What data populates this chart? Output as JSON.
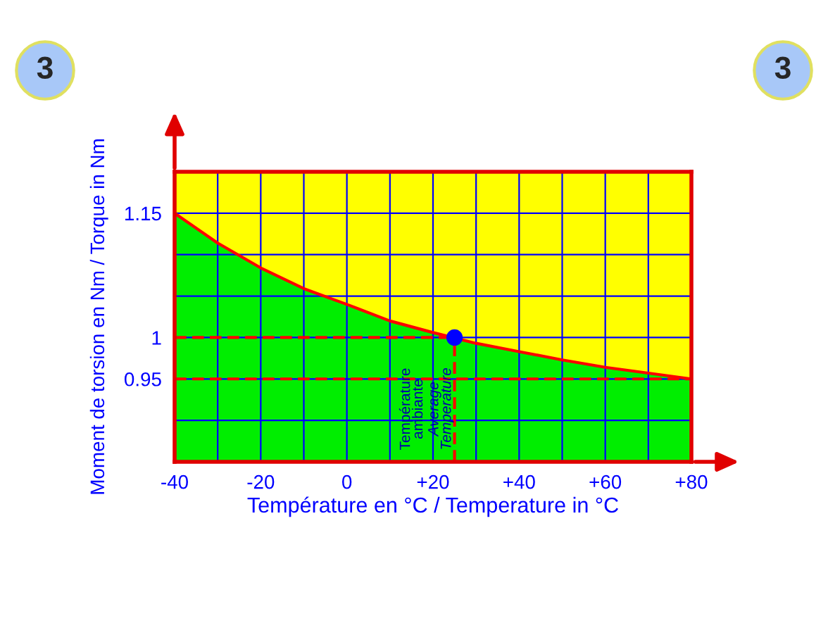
{
  "chart_data": {
    "type": "area",
    "xlabel": "Température en °C / Temperature in °C",
    "ylabel": "Moment de torsion en Nm / Torque in Nm",
    "x": [
      -40,
      -30,
      -20,
      -10,
      0,
      10,
      20,
      30,
      40,
      50,
      60,
      70,
      80
    ],
    "series": [
      {
        "color": "#00ee00",
        "values": [
          1.15,
          1.114,
          1.084,
          1.059,
          1.04,
          1.02,
          1.006,
          0.993,
          0.983,
          0.973,
          0.964,
          0.957,
          0.95
        ]
      },
      {
        "type": "line",
        "color": "#ff0000",
        "values": [
          1.15,
          1.114,
          1.084,
          1.059,
          1.04,
          1.02,
          1.006,
          0.993,
          0.983,
          0.973,
          0.964,
          0.957,
          0.95
        ]
      },
      {
        "type": "scatter",
        "color": "#0000ff",
        "x": [
          25
        ],
        "values": [
          1.0
        ]
      }
    ],
    "xlim": [
      -40,
      80
    ],
    "ylim": [
      0.85,
      1.2
    ],
    "xticks": [
      -40,
      {
        "value": -30,
        "label": null
      },
      -20,
      {
        "value": -10,
        "label": null
      },
      0,
      {
        "value": 10,
        "label": null
      },
      {
        "value": 20,
        "label": "+20"
      },
      {
        "value": 30,
        "label": null
      },
      {
        "value": 40,
        "label": "+40"
      },
      {
        "value": 50,
        "label": null
      },
      {
        "value": 60,
        "label": "+60"
      },
      {
        "value": 70,
        "label": null
      },
      {
        "value": 80,
        "label": "+80"
      }
    ],
    "yticks": [
      {
        "value": 0.85,
        "label": null
      },
      {
        "value": 0.9,
        "label": null
      },
      0.95,
      1,
      {
        "value": 1.05,
        "label": null
      },
      {
        "value": 1.1,
        "label": null
      },
      1.15,
      {
        "value": 1.2,
        "label": null
      }
    ],
    "grid": true,
    "bands": [
      {
        "axis": "y",
        "from": 0.85,
        "to": 1.2,
        "color": "#ffff00"
      }
    ],
    "ref_lines": [
      {
        "axis": "y",
        "value": 1,
        "color": "#ff0000",
        "line_style": "dashed"
      },
      {
        "axis": "y",
        "value": 0.95,
        "color": "#ff0000",
        "line_style": "dashed"
      },
      {
        "axis": "x",
        "value": 25,
        "color": "#ff0000",
        "line_style": "dashed"
      }
    ],
    "annotations": [
      "3",
      "3",
      "Température\nambiante",
      "Average\nTemperature"
    ]
  }
}
